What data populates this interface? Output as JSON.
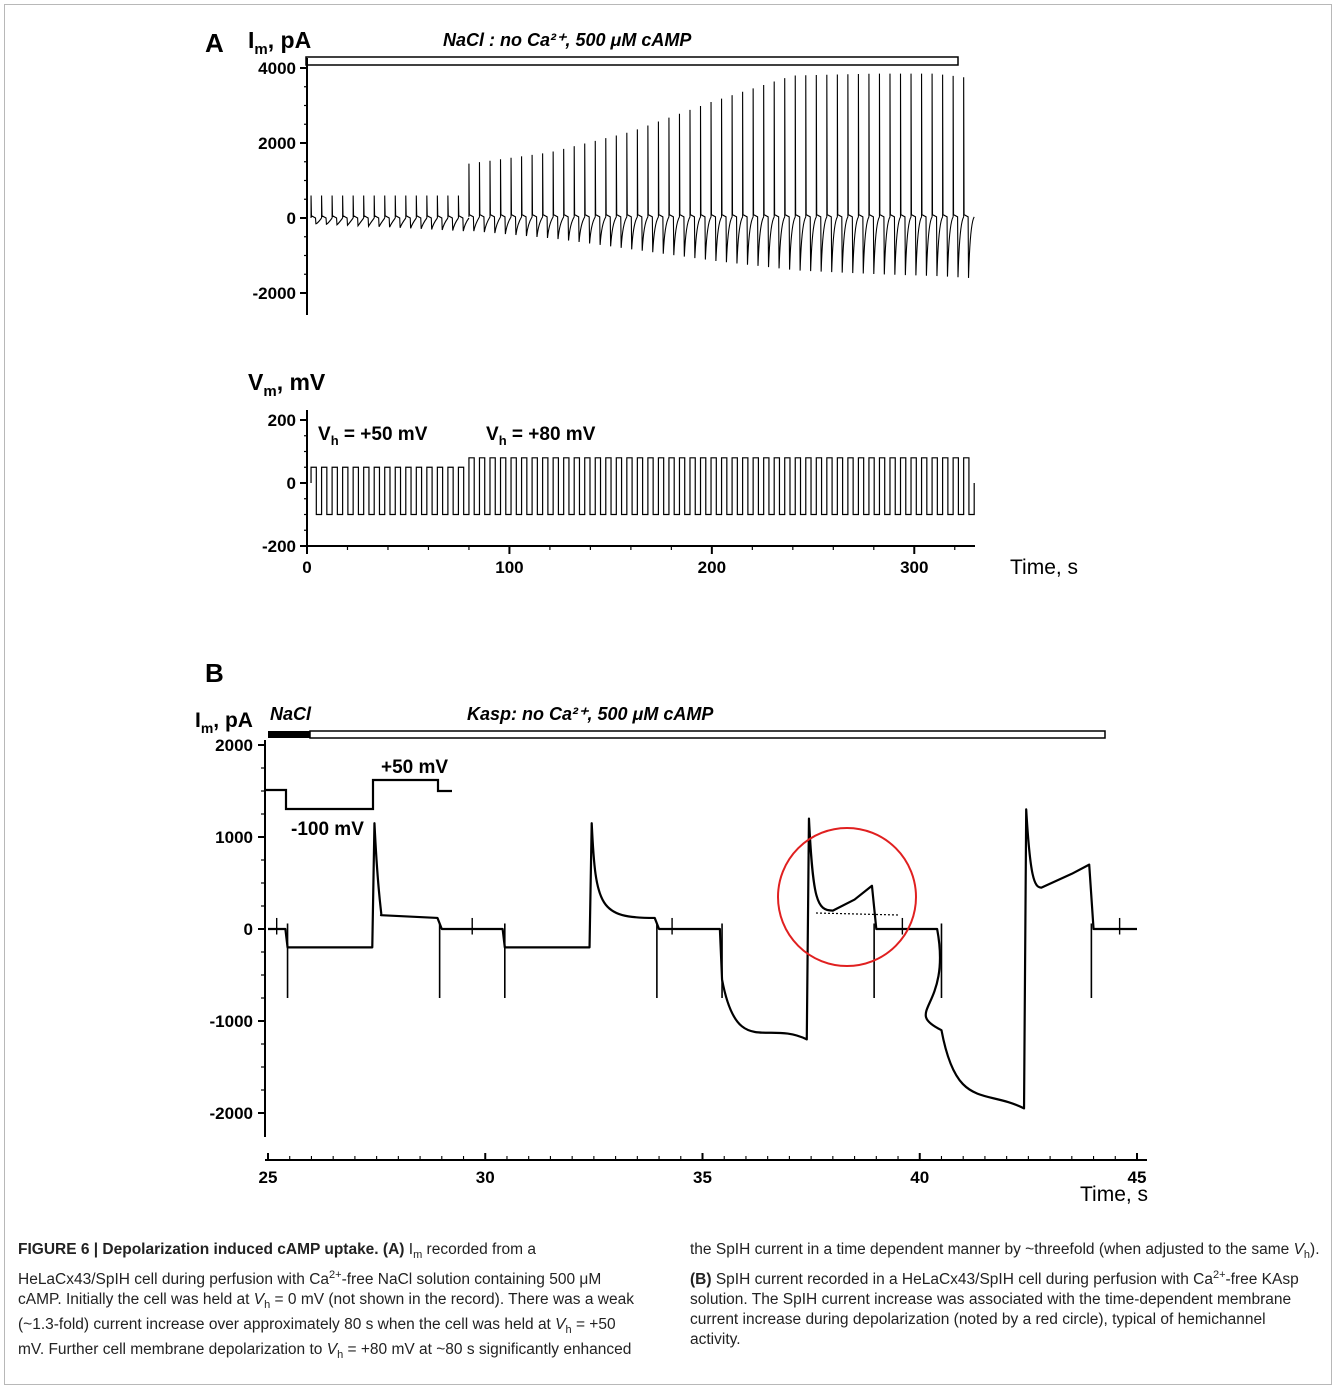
{
  "figure": {
    "panelA": {
      "label": "A",
      "current_axis_label": "I",
      "current_axis_sub": "m",
      "current_axis_unit": ", pA",
      "perfusion_label": "NaCl :  no Ca²⁺,  500 μM  cAMP",
      "voltage_axis_label": "V",
      "voltage_axis_sub": "m",
      "voltage_axis_unit": ", mV",
      "vh1_label": "V",
      "vh1_sub": "h",
      "vh1_value": " = +50 mV",
      "vh2_label": "V",
      "vh2_sub": "h",
      "vh2_value": " = +80 mV",
      "time_label": "Time, s"
    },
    "panelB": {
      "label": "B",
      "current_axis_label": "I",
      "current_axis_sub": "m",
      "current_axis_unit": ", pA",
      "nacl_label": "NaCl",
      "kasp_label": "Kasp:  no Ca²⁺,  500 μM  cAMP",
      "step_low_label": "-100 mV",
      "step_high_label": "+50 mV",
      "time_label": "Time, s"
    },
    "caption_left": {
      "title": "FIGURE 6 | Depolarization induced cAMP uptake. (A)",
      "text": " I<sub>m</sub> recorded from a HeLaCx43/SpIH cell during perfusion with Ca<sup>2+</sup>-free NaCl solution containing 500 μM cAMP. Initially the cell was held at <i>V</i><sub>h</sub> = 0 mV (not shown in the record). There was a weak (~1.3-fold) current increase over approximately 80 s when the cell was held at <i>V</i><sub>h</sub> = +50 mV. Further cell membrane depolarization to <i>V</i><sub>h</sub> = +80 mV at ~80 s significantly enhanced"
    },
    "caption_right": {
      "text": "the SpIH current in a time dependent manner by ~threefold (when adjusted to the same <i>V</i><sub>h</sub>). <b>(B)</b> SpIH current recorded in a HeLaCx43/SpIH cell during perfusion with Ca<sup>2+</sup>-free KAsp solution. The SpIH current increase was associated with the time-dependent membrane current increase during depolarization (noted by a red circle), typical of hemichannel activity."
    }
  },
  "chart_data": [
    {
      "type": "line",
      "panel": "A-current",
      "ylabel": "Im, pA",
      "yticks": [
        4000,
        2000,
        0,
        -2000
      ],
      "ylim": [
        -2500,
        4200
      ],
      "xlim": [
        0,
        330
      ],
      "series": [
        {
          "description_values": "pulse train; positive peaks (pA) vs time (s)",
          "x": [
            0,
            40,
            75,
            80,
            120,
            160,
            200,
            240,
            280,
            310,
            325
          ],
          "peak_pA": [
            600,
            600,
            600,
            1450,
            1750,
            2300,
            3100,
            3800,
            3850,
            3850,
            3750
          ],
          "trough_pA": [
            -150,
            -250,
            -350,
            -350,
            -550,
            -850,
            -1150,
            -1400,
            -1500,
            -1550,
            -1600
          ]
        }
      ]
    },
    {
      "type": "line",
      "panel": "A-voltage",
      "ylabel": "Vm, mV",
      "yticks": [
        200,
        0,
        -200
      ],
      "ylim": [
        -200,
        200
      ],
      "xticks": [
        0,
        100,
        200,
        300
      ],
      "xlim": [
        0,
        330
      ],
      "segments": [
        {
          "x": [
            0,
            75
          ],
          "high_mV": 50,
          "low_mV": -100
        },
        {
          "x": [
            75,
            325
          ],
          "high_mV": 80,
          "low_mV": -100
        }
      ]
    },
    {
      "type": "line",
      "panel": "B-current",
      "ylabel": "Im, pA",
      "yticks": [
        2000,
        1000,
        0,
        -1000,
        -2000
      ],
      "ylim": [
        -2100,
        2000
      ],
      "xticks": [
        25,
        30,
        35,
        40,
        45
      ],
      "xlim": [
        25,
        45
      ],
      "x": [
        25.0,
        25.4,
        25.45,
        27.4,
        27.45,
        27.6,
        28.9,
        29.0,
        30.4,
        30.45,
        32.4,
        32.45,
        33.9,
        34.0,
        35.4,
        35.45,
        37.4,
        37.45,
        38.0,
        38.5,
        38.9,
        39.0,
        40.4,
        40.5,
        42.4,
        42.45,
        42.8,
        43.5,
        43.9,
        44.0,
        45.0
      ],
      "y": [
        0,
        0,
        -200,
        -200,
        1150,
        150,
        120,
        0,
        0,
        -200,
        -200,
        1150,
        120,
        0,
        0,
        -550,
        -1200,
        1200,
        200,
        320,
        470,
        0,
        0,
        -1100,
        -1950,
        1300,
        450,
        600,
        700,
        0,
        0
      ]
    }
  ]
}
